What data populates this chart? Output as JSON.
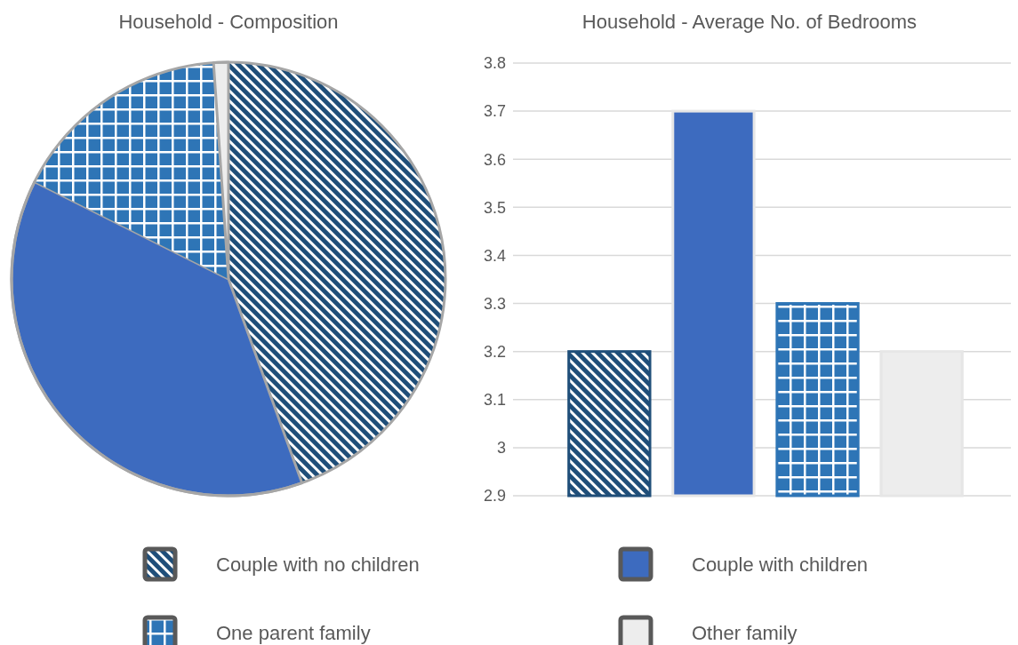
{
  "chart_data": [
    {
      "type": "pie",
      "title": "Household - Composition",
      "categories": [
        "Couple with no children",
        "Couple with children",
        "One parent family",
        "Other family"
      ],
      "values": [
        44.5,
        37.9,
        16.5,
        1.1
      ],
      "colors": [
        "#1f4e79",
        "#3d6bbf",
        "#2e75b6",
        "#ededed"
      ],
      "legend": "bottom"
    },
    {
      "type": "bar",
      "title": "Household - Average No. of Bedrooms",
      "categories": [
        null,
        null,
        null,
        null
      ],
      "values": [
        3.2,
        3.7,
        3.3,
        3.2
      ],
      "colors": [
        "#1f4e79",
        "#3d6bbf",
        "#2e75b6",
        "#ededed"
      ],
      "ylim": [
        2.9,
        3.8
      ],
      "yticks": [
        2.9,
        3,
        3.1,
        3.2,
        3.3,
        3.4,
        3.5,
        3.6,
        3.7,
        3.8
      ],
      "grid": "y",
      "tick_labels": "y"
    }
  ]
}
